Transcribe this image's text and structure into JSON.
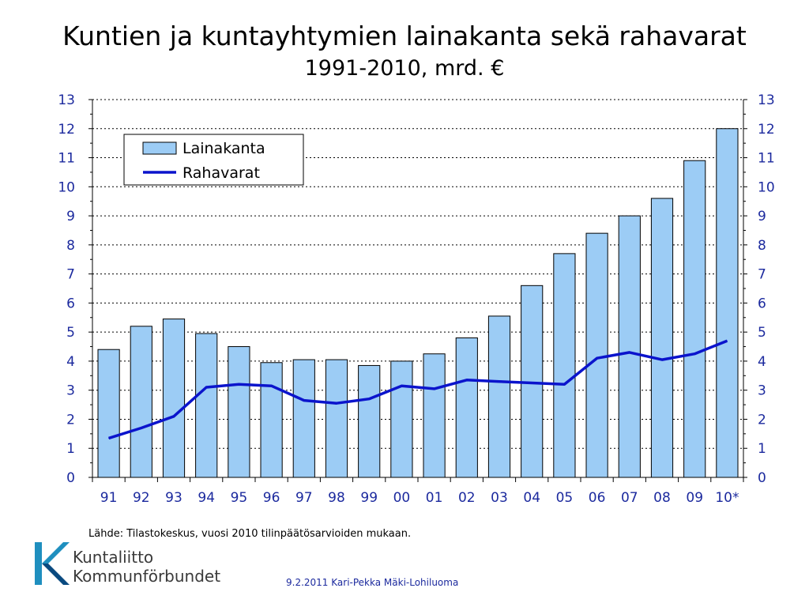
{
  "title": "Kuntien ja kuntayhtymien lainakanta sekä rahavarat",
  "subtitle": "1991-2010, mrd. €",
  "source": "Lähde: Tilastokeskus, vuosi 2010 tilinpäätösarvioiden mukaan.",
  "footer": "9.2.2011 Kari-Pekka Mäki-Lohiluoma",
  "logo": {
    "line1": "Kuntaliitto",
    "line2": "Kommunförbundet",
    "icon": "kuntaliitto-logo-icon",
    "colors": [
      "#1f8fbf",
      "#0a4a80"
    ]
  },
  "colors": {
    "bar_fill": "#9cccf5",
    "bar_stroke": "#000000",
    "line": "#0b14cc",
    "tick_text": "#1c2a9e",
    "grid": "#000000"
  },
  "chart_data": {
    "type": "bar",
    "categories": [
      "91",
      "92",
      "93",
      "94",
      "95",
      "96",
      "97",
      "98",
      "99",
      "00",
      "01",
      "02",
      "03",
      "04",
      "05",
      "06",
      "07",
      "08",
      "09",
      "10*"
    ],
    "series": [
      {
        "name": "Lainakanta",
        "type": "bar",
        "values": [
          4.4,
          5.2,
          5.45,
          4.95,
          4.5,
          3.95,
          4.05,
          4.05,
          3.85,
          4.0,
          4.25,
          4.8,
          5.55,
          6.6,
          7.7,
          8.4,
          9.0,
          9.6,
          10.9,
          12.0
        ]
      },
      {
        "name": "Rahavarat",
        "type": "line",
        "values": [
          1.35,
          1.7,
          2.1,
          3.1,
          3.2,
          3.15,
          2.65,
          2.55,
          2.7,
          3.15,
          3.05,
          3.35,
          3.3,
          3.25,
          3.2,
          4.1,
          4.3,
          4.05,
          4.25,
          4.7
        ]
      }
    ],
    "ylim": [
      0,
      13
    ],
    "yticks": [
      0,
      1,
      2,
      3,
      4,
      5,
      6,
      7,
      8,
      9,
      10,
      11,
      12,
      13
    ],
    "secondary_yticks": [
      0,
      1,
      2,
      3,
      4,
      5,
      6,
      7,
      8,
      9,
      10,
      11,
      12,
      13
    ],
    "grid": "horizontal dotted",
    "legend_position": "top-left"
  }
}
